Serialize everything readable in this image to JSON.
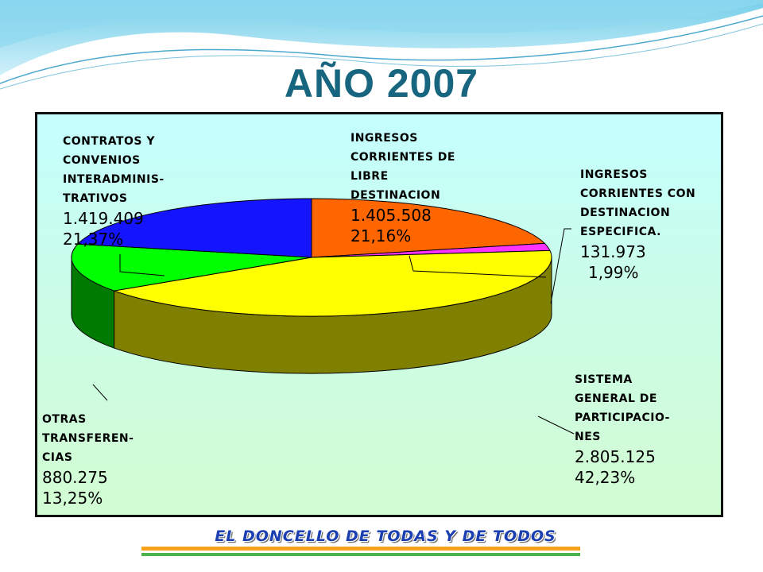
{
  "slide": {
    "title": "AÑO 2007",
    "footer": "EL DONCELLO DE TODAS Y DE TODOS"
  },
  "chart_data": {
    "type": "pie",
    "title": "AÑO 2007",
    "slices": [
      {
        "label": "INGRESOS CORRIENTES DE LIBRE DESTINACION",
        "value": 1405508,
        "value_text": "1.405.508",
        "percent_text": "21,16%",
        "color": "#ff6600",
        "side": "#b34700"
      },
      {
        "label": "INGRESOS CORRIENTES CON DESTINACION ESPECIFICA.",
        "value": 131973,
        "value_text": "131.973",
        "percent_text": "1,99%",
        "color": "#ff33ff",
        "side": "#a020a0"
      },
      {
        "label": "SISTEMA GENERAL DE PARTICIPACIO- NES",
        "value": 2805125,
        "value_text": "2.805.125",
        "percent_text": "42,23%",
        "color": "#ffff00",
        "side": "#808000"
      },
      {
        "label": "OTRAS TRANSFEREN- CIAS",
        "value": 880275,
        "value_text": "880.275",
        "percent_text": "13,25%",
        "color": "#00ff00",
        "side": "#007a00"
      },
      {
        "label": "CONTRATOS Y CONVENIOS INTERADMINIS- TRATIVOS",
        "value": 1419409,
        "value_text": "1.419.409",
        "percent_text": "21,37%",
        "color": "#1414ff",
        "side": "#0a0a80"
      }
    ],
    "label_lines": {
      "s0": [
        "INGRESOS",
        "CORRIENTES DE",
        "LIBRE",
        "DESTINACION"
      ],
      "s1": [
        "INGRESOS",
        "CORRIENTES CON",
        "DESTINACION",
        "ESPECIFICA."
      ],
      "s2": [
        "SISTEMA",
        "GENERAL DE",
        "PARTICIPACIO-",
        "NES"
      ],
      "s3": [
        "OTRAS",
        "TRANSFEREN-",
        "CIAS"
      ],
      "s4": [
        "CONTRATOS Y",
        "CONVENIOS",
        "INTERADMINIS-",
        "TRATIVOS"
      ]
    },
    "legend": "none",
    "grid": false
  }
}
